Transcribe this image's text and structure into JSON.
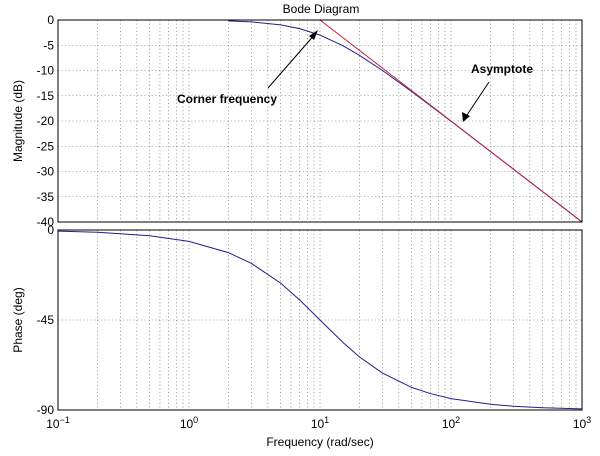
{
  "chart_data": [
    {
      "type": "line",
      "title": "Bode Diagram",
      "ylabel": "Magnitude (dB)",
      "xscale": "log",
      "xlim": [
        0.1,
        1000
      ],
      "ylim": [
        -40,
        0
      ],
      "grid": true,
      "yticks": [
        "0",
        "-5",
        "-10",
        "-15",
        "-20",
        "-25",
        "-30",
        "-35",
        "-40"
      ],
      "series": [
        {
          "role": "response",
          "color": "#1f1f8f",
          "x": [
            2,
            3,
            5,
            7,
            10,
            15,
            20,
            30,
            50,
            70,
            100,
            200,
            300,
            500,
            700,
            1000
          ],
          "y": [
            -0.17,
            -0.37,
            -0.97,
            -1.7,
            -3.0,
            -5.1,
            -7.0,
            -10.0,
            -14.15,
            -16.99,
            -20.04,
            -26.03,
            -29.54,
            -33.98,
            -36.9,
            -40.0
          ]
        },
        {
          "role": "asymptote",
          "color": "#c0203a",
          "x": [
            10,
            1000
          ],
          "y": [
            0,
            -40
          ]
        }
      ],
      "annotations": [
        {
          "text": "Corner frequency",
          "points_to": {
            "x": 10,
            "y": -3
          }
        },
        {
          "text": "Asymptote",
          "points_to": {
            "x": 110,
            "y": -21
          }
        }
      ]
    },
    {
      "type": "line",
      "ylabel": "Phase (deg)",
      "xlabel": "Frequency (rad/sec)",
      "xscale": "log",
      "xlim": [
        0.1,
        1000
      ],
      "ylim": [
        -90,
        0
      ],
      "grid": true,
      "yticks": [
        "0",
        "-45",
        "-90"
      ],
      "xticks": [
        {
          "base": "10",
          "exp": "−1"
        },
        {
          "base": "10",
          "exp": "0"
        },
        {
          "base": "10",
          "exp": "1"
        },
        {
          "base": "10",
          "exp": "2"
        },
        {
          "base": "10",
          "exp": "3"
        }
      ],
      "series": [
        {
          "role": "response",
          "color": "#1f1f8f",
          "x": [
            0.1,
            0.2,
            0.5,
            1,
            2,
            3,
            5,
            7,
            10,
            15,
            20,
            30,
            50,
            70,
            100,
            200,
            300,
            500,
            1000
          ],
          "y": [
            -0.57,
            -1.15,
            -2.86,
            -5.71,
            -11.31,
            -16.7,
            -26.57,
            -34.99,
            -45.0,
            -56.31,
            -63.43,
            -71.57,
            -78.69,
            -81.87,
            -84.29,
            -87.14,
            -88.09,
            -88.85,
            -89.43
          ]
        }
      ]
    }
  ]
}
